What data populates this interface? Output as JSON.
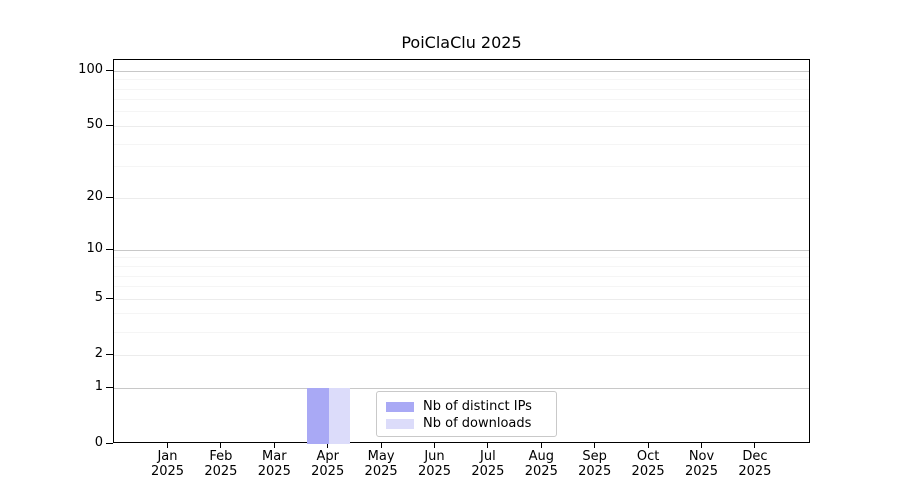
{
  "chart_data": {
    "type": "bar",
    "title": "PoiClaClu 2025",
    "year": "2025",
    "categories": [
      "Jan",
      "Feb",
      "Mar",
      "Apr",
      "May",
      "Jun",
      "Jul",
      "Aug",
      "Sep",
      "Oct",
      "Nov",
      "Dec"
    ],
    "series": [
      {
        "name": "Nb of distinct IPs",
        "color": "#a9a9f5",
        "values": [
          0,
          0,
          0,
          1,
          0,
          0,
          0,
          0,
          0,
          0,
          0,
          0
        ]
      },
      {
        "name": "Nb of downloads",
        "color": "#dcdcfa",
        "values": [
          0,
          0,
          0,
          1,
          0,
          0,
          0,
          0,
          0,
          0,
          0,
          0
        ]
      }
    ],
    "xlabel": "",
    "ylabel": "",
    "yscale": "log1p",
    "ylim": [
      0,
      115
    ],
    "yticks": [
      0,
      1,
      2,
      5,
      10,
      20,
      50,
      100
    ],
    "minor_yticks": [
      3,
      4,
      6,
      7,
      8,
      9,
      30,
      40,
      60,
      70,
      80,
      90
    ],
    "grid": true,
    "legend_position": "lower-center-inside"
  },
  "colors": {
    "background": "#ffffff",
    "axis": "#000000",
    "text": "#000000",
    "grid_decade": "#c8c8c8",
    "grid_labeled": "#ececec",
    "grid_minor": "#f5f5f5",
    "legend_border": "#c9c9c9"
  }
}
